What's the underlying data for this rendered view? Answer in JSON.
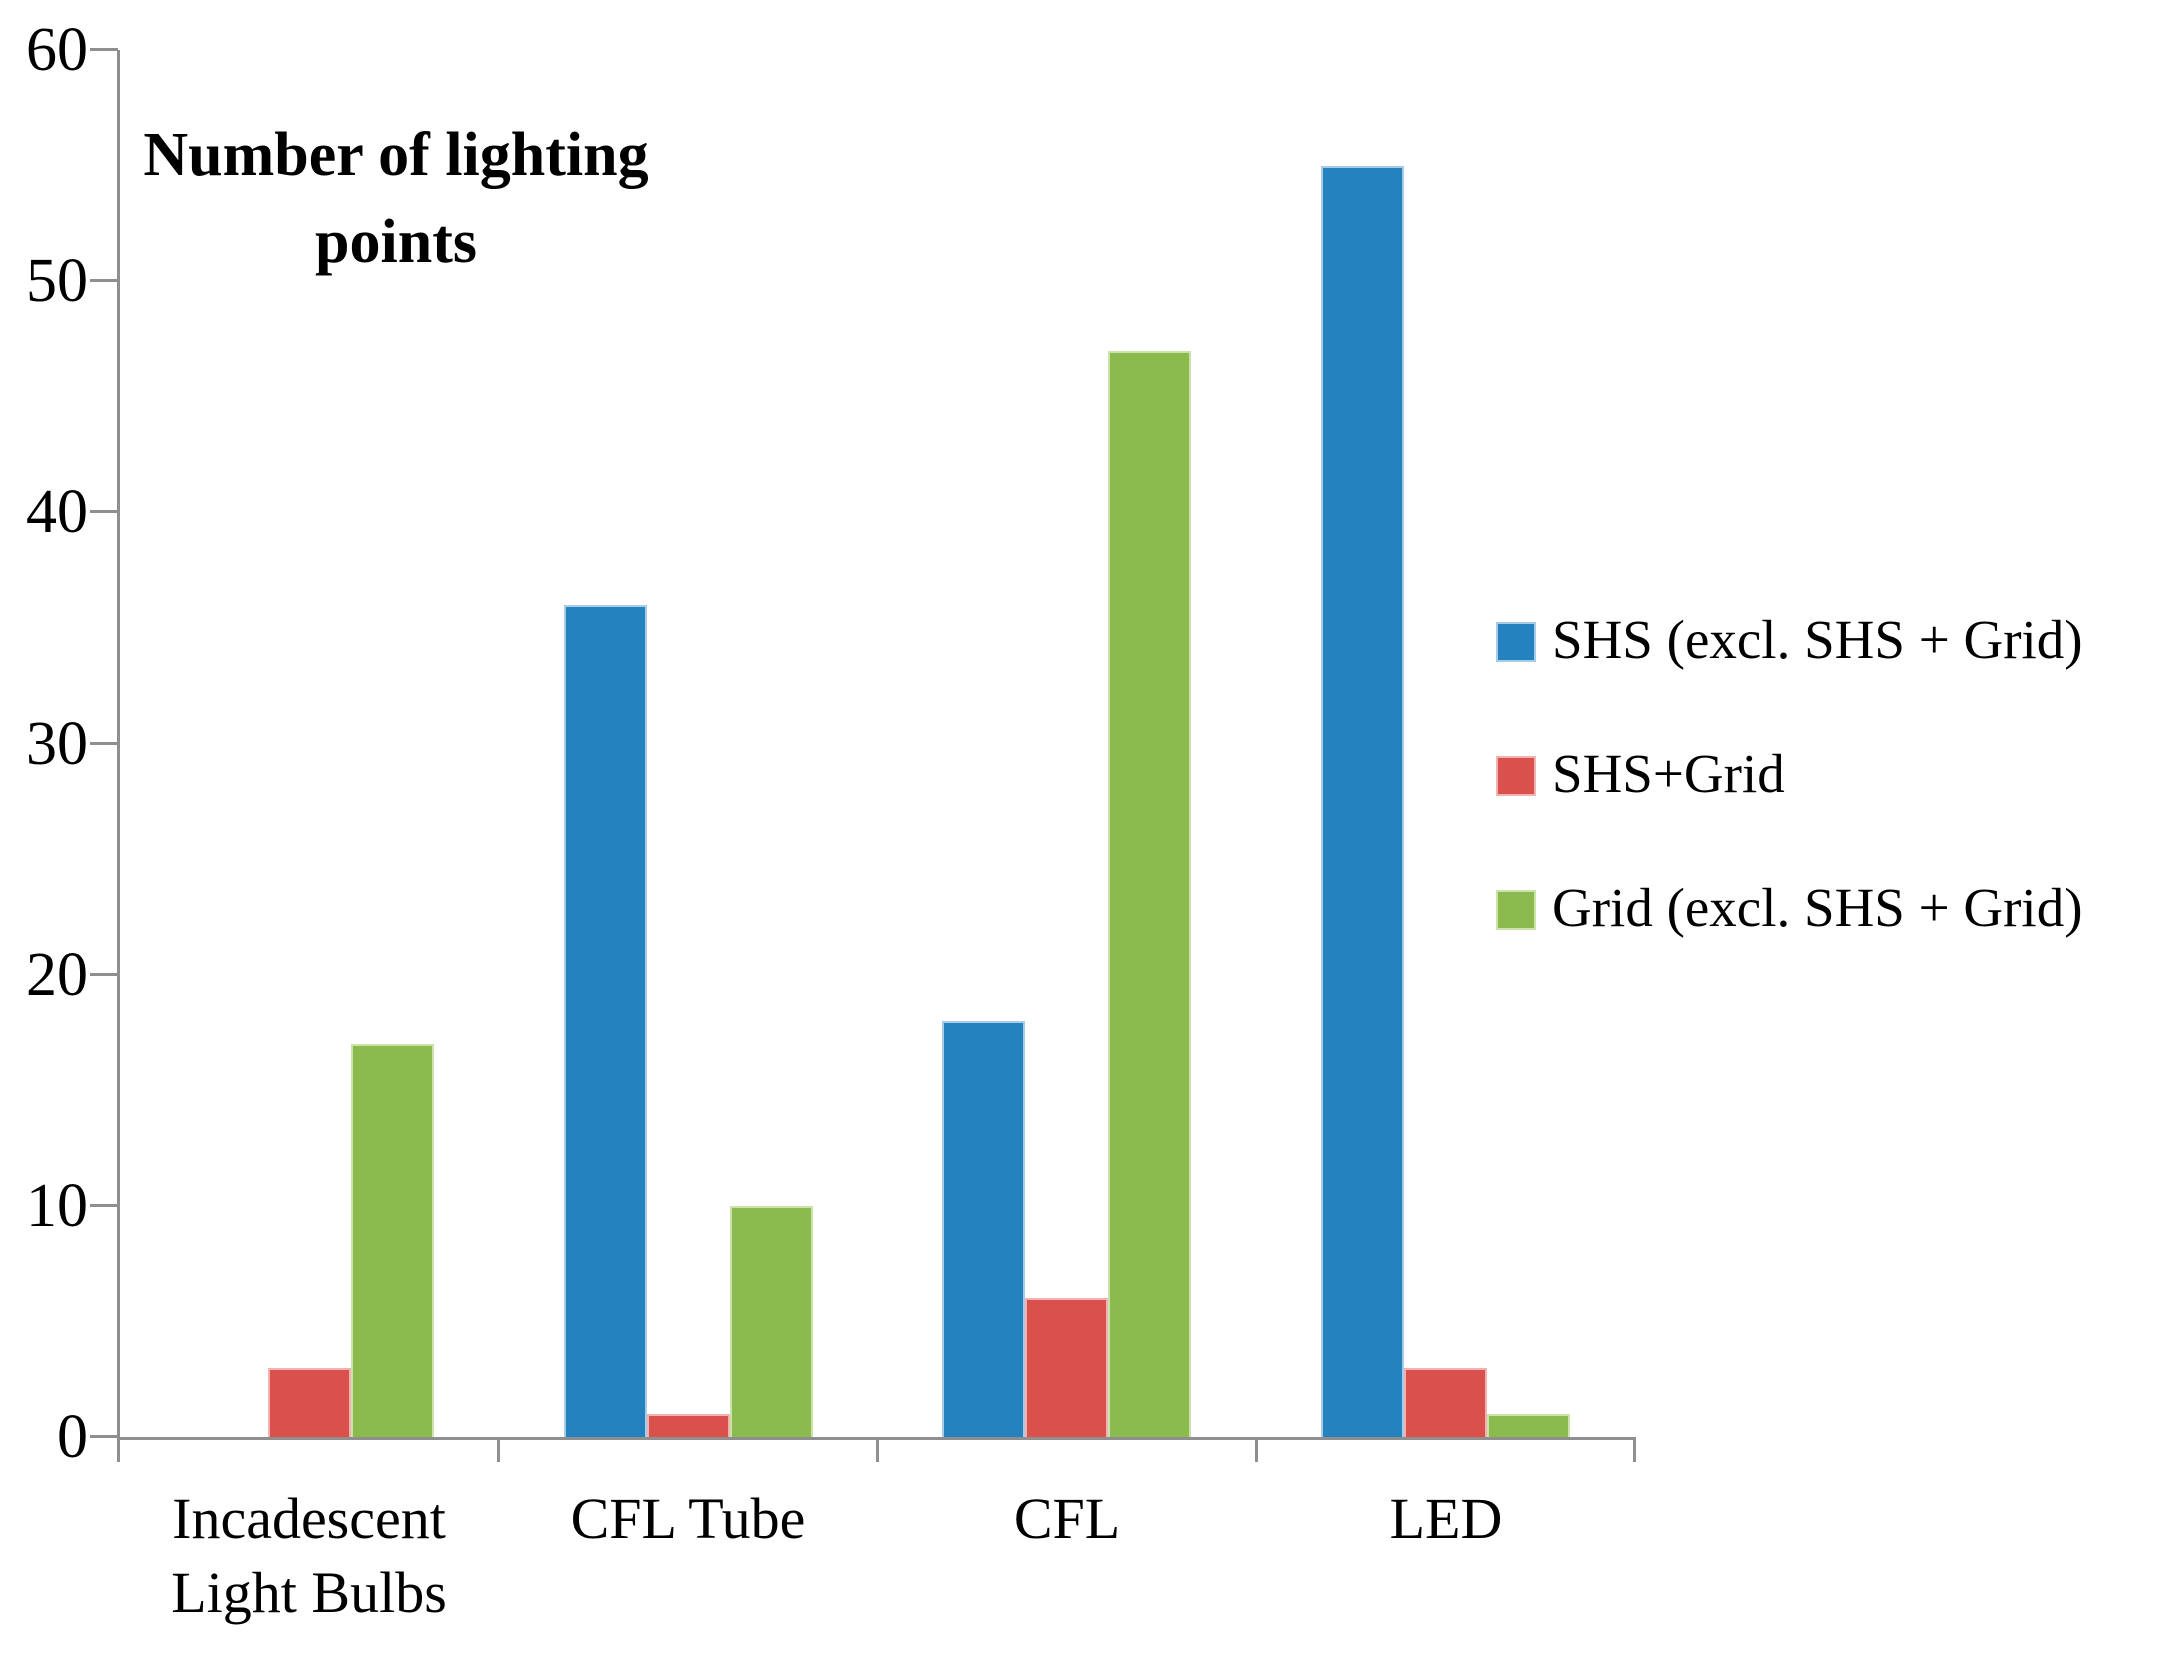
{
  "chart_data": {
    "type": "bar",
    "title": "",
    "ylabel": "Number of lighting points",
    "xlabel": "",
    "categories": [
      "Incadescent Light Bulbs",
      "CFL Tube",
      "CFL",
      "LED"
    ],
    "series": [
      {
        "name": "SHS (excl. SHS + Grid)",
        "color": "#2483BF",
        "border_color": "#A8CBE8",
        "values": [
          0,
          36,
          18,
          55
        ]
      },
      {
        "name": "SHS+Grid",
        "color": "#D9504C",
        "border_color": "#EFB3B1",
        "values": [
          3,
          1,
          6,
          3
        ]
      },
      {
        "name": "Grid (excl. SHS + Grid)",
        "color": "#8BBB4F",
        "border_color": "#CBE2A9",
        "values": [
          17,
          10,
          47,
          1
        ]
      }
    ],
    "ylim": [
      0,
      60
    ],
    "y_ticks": [
      0,
      10,
      20,
      30,
      40,
      50,
      60
    ],
    "y_tick_labels": [
      "0",
      "10",
      "20",
      "30",
      "40",
      "50",
      "60"
    ],
    "grid": false,
    "legend_position": "right",
    "axis_color": "#8f8f8f",
    "background_color": "#ffffff"
  }
}
